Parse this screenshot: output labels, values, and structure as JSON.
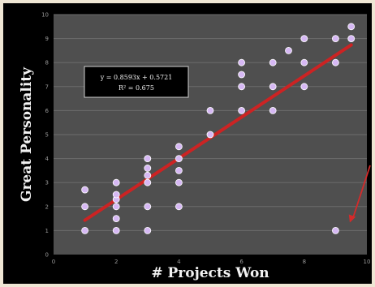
{
  "chart_data": {
    "type": "scatter",
    "xlabel": "# Projects Won",
    "ylabel": "Great Personality",
    "xlim": [
      0,
      10
    ],
    "ylim": [
      0,
      10
    ],
    "x_ticks": [
      "0",
      "2",
      "4",
      "6",
      "8",
      "10"
    ],
    "y_ticks": [
      "0",
      "1",
      "2",
      "3",
      "4",
      "5",
      "6",
      "7",
      "8",
      "9",
      "10"
    ],
    "grid": true,
    "points": [
      {
        "x": 1,
        "y": 1
      },
      {
        "x": 1,
        "y": 2
      },
      {
        "x": 1,
        "y": 2.7
      },
      {
        "x": 2,
        "y": 1
      },
      {
        "x": 2,
        "y": 1.5
      },
      {
        "x": 2,
        "y": 2
      },
      {
        "x": 2,
        "y": 2.3
      },
      {
        "x": 2,
        "y": 2.5
      },
      {
        "x": 2,
        "y": 3
      },
      {
        "x": 3,
        "y": 1
      },
      {
        "x": 3,
        "y": 2
      },
      {
        "x": 3,
        "y": 3
      },
      {
        "x": 3,
        "y": 3.3
      },
      {
        "x": 3,
        "y": 3.6
      },
      {
        "x": 3,
        "y": 4
      },
      {
        "x": 4,
        "y": 2
      },
      {
        "x": 4,
        "y": 3
      },
      {
        "x": 4,
        "y": 3.5
      },
      {
        "x": 4,
        "y": 4
      },
      {
        "x": 4,
        "y": 4.5
      },
      {
        "x": 5,
        "y": 5
      },
      {
        "x": 5,
        "y": 6
      },
      {
        "x": 6,
        "y": 6
      },
      {
        "x": 6,
        "y": 7
      },
      {
        "x": 6,
        "y": 7.5
      },
      {
        "x": 6,
        "y": 8
      },
      {
        "x": 7,
        "y": 6
      },
      {
        "x": 7,
        "y": 7
      },
      {
        "x": 7,
        "y": 8
      },
      {
        "x": 7.5,
        "y": 8.5
      },
      {
        "x": 8,
        "y": 7
      },
      {
        "x": 8,
        "y": 8
      },
      {
        "x": 8,
        "y": 9
      },
      {
        "x": 9,
        "y": 1
      },
      {
        "x": 9,
        "y": 8
      },
      {
        "x": 9,
        "y": 9
      },
      {
        "x": 9.5,
        "y": 9
      },
      {
        "x": 9.5,
        "y": 9.5
      }
    ],
    "trendline": {
      "slope": 0.8593,
      "intercept": 0.5721,
      "x_range": [
        1,
        9.5
      ]
    },
    "equation_label": "y = 0.8593x + 0.5721",
    "r2_label": "R² = 0.675",
    "annotation": {
      "type": "arrow",
      "points_to": {
        "x": 9.3,
        "y": 1.2
      }
    }
  },
  "colors": {
    "background": "#000000",
    "plot_area": "#4f4f4f",
    "grid": "#6c6c6c",
    "points": "#d6b8f4",
    "trendline": "#cc2323",
    "arrow": "#d42a2a",
    "text": "#f2f2f2",
    "tick": "#9a9a9a",
    "border": "#efe6d4"
  }
}
